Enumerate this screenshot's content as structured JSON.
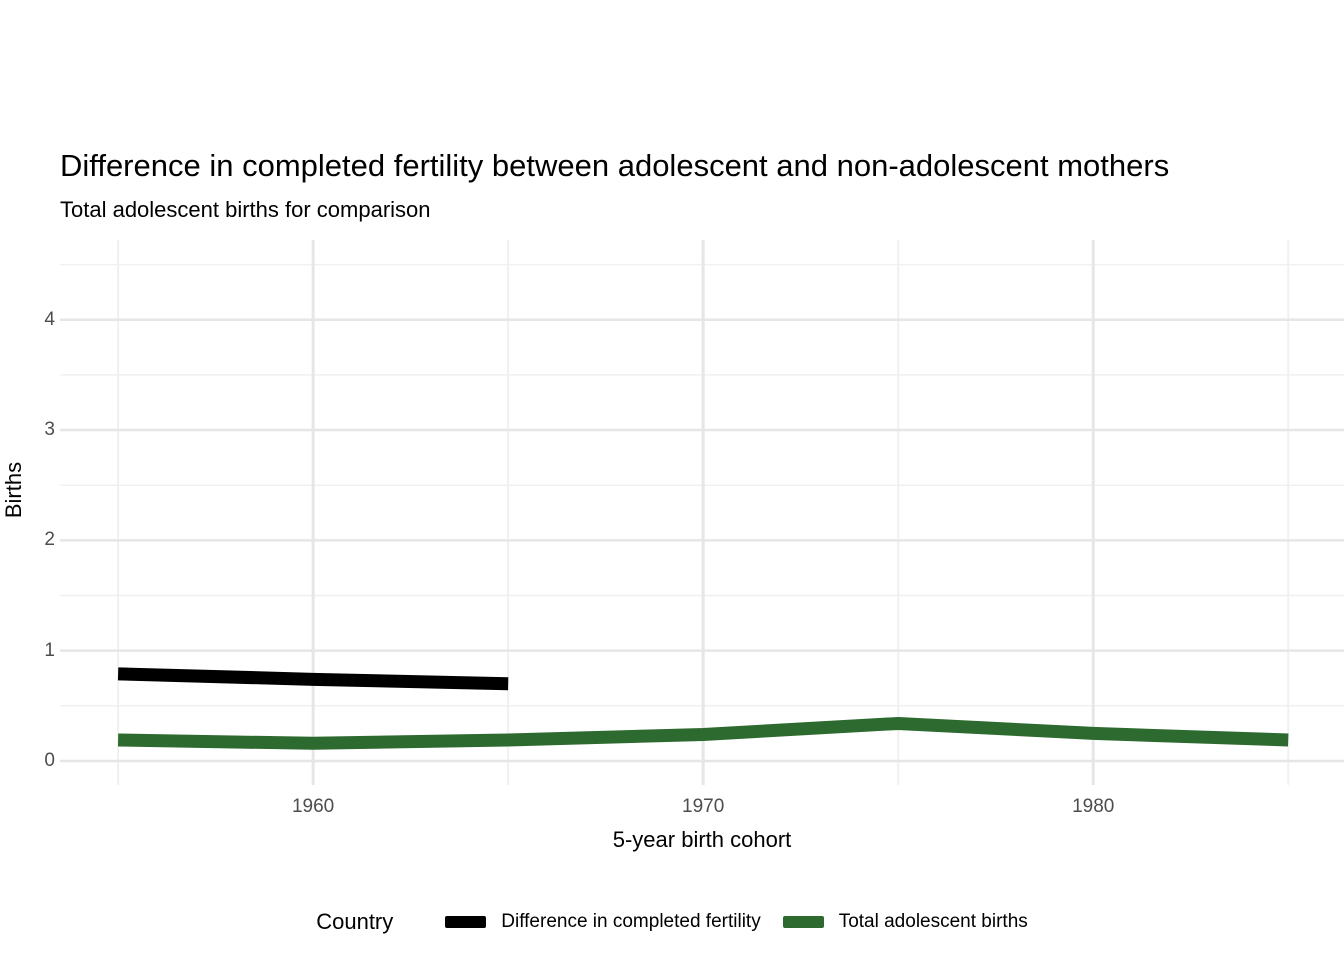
{
  "chart_data": {
    "type": "line",
    "title": "Difference in completed fertility between adolescent and non-adolescent mothers",
    "subtitle": "Total adolescent births for comparison",
    "xlabel": "5-year birth cohort",
    "ylabel": "Births",
    "legend_title": "Country",
    "legend_position": "bottom",
    "grid": "on",
    "xlim": [
      1953.51,
      1986.43
    ],
    "ylim": [
      -0.218,
      4.723
    ],
    "x_major_ticks": [
      1960,
      1970,
      1980
    ],
    "x_minor_gridlines": [
      1955,
      1965,
      1975,
      1985
    ],
    "y_major_ticks": [
      0,
      1,
      2,
      3,
      4
    ],
    "y_minor_gridlines": [
      0.5,
      1.5,
      2.5,
      3.5,
      4.5
    ],
    "grid_major_color": "#e6e6e6",
    "grid_minor_color": "#f0f0f0",
    "line_width": 13,
    "series": [
      {
        "name": "Difference in completed fertility",
        "color": "#000000",
        "x": [
          1955,
          1960,
          1965
        ],
        "values": [
          0.79,
          0.74,
          0.7
        ]
      },
      {
        "name": "Total adolescent births",
        "color": "#2d6a2f",
        "x": [
          1955,
          1960,
          1965,
          1970,
          1975,
          1980,
          1985
        ],
        "values": [
          0.19,
          0.16,
          0.19,
          0.24,
          0.34,
          0.25,
          0.19
        ]
      }
    ]
  }
}
